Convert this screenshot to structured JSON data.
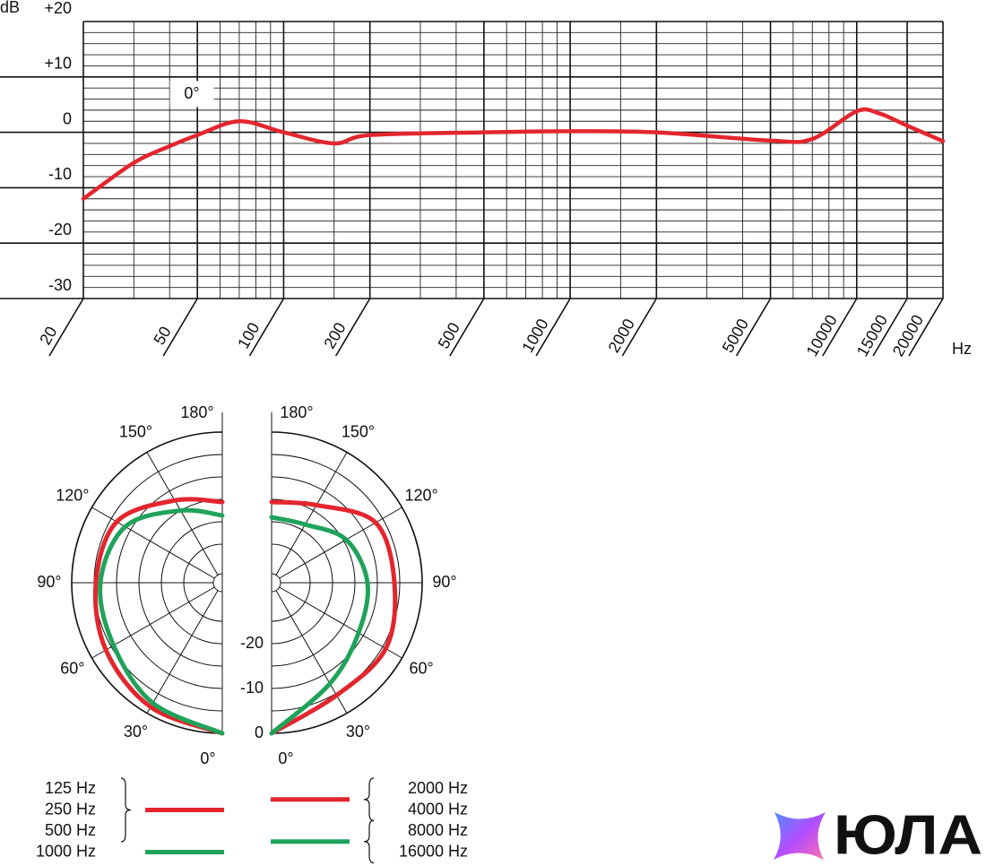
{
  "chart_data": [
    {
      "type": "line",
      "ylabel": "dB",
      "xlabel": "Hz",
      "annotation": "0°",
      "xscale": "log",
      "xlim": [
        20,
        20000
      ],
      "xticks": [
        20,
        50,
        100,
        200,
        500,
        1000,
        2000,
        5000,
        10000,
        15000,
        20000
      ],
      "xminor": [
        30,
        40,
        60,
        70,
        80,
        90,
        150,
        300,
        400,
        600,
        700,
        800,
        900,
        1500,
        3000,
        4000,
        6000,
        7000,
        8000,
        9000
      ],
      "ylim": [
        -30,
        20
      ],
      "yticks": [
        {
          "value": 20,
          "label": "+20"
        },
        {
          "value": 10,
          "label": "+10"
        },
        0,
        -10,
        -20,
        -30
      ],
      "yminor": [
        18,
        16,
        14,
        12,
        8,
        6,
        4,
        2,
        -2,
        -4,
        -6,
        -8,
        -12,
        -14,
        -16,
        -18,
        -22,
        -24,
        -26,
        -28
      ],
      "x": [
        20,
        30,
        40,
        50,
        70,
        100,
        150,
        200,
        500,
        1000,
        2000,
        5000,
        7000,
        10000,
        12000,
        15000,
        20000
      ],
      "values": [
        -12,
        -5.5,
        -2.5,
        -0.5,
        2,
        0,
        -2,
        -0.5,
        0,
        0.2,
        0,
        -1.5,
        -1.2,
        3.8,
        3.4,
        1.2,
        -1.6
      ],
      "color": "#e3262e",
      "grid": true
    },
    {
      "type": "polar",
      "theta": [
        0,
        30,
        60,
        90,
        120,
        150,
        180
      ],
      "thetaticks": [
        {
          "value": 0,
          "label": "0°"
        },
        {
          "value": 30,
          "label": "30°"
        },
        {
          "value": 60,
          "label": "60°"
        },
        {
          "value": 90,
          "label": "90°"
        },
        {
          "value": 120,
          "label": "120°"
        },
        {
          "value": 150,
          "label": "150°"
        },
        {
          "value": 180,
          "label": "180°"
        }
      ],
      "rlim": [
        -30,
        0
      ],
      "rticks": [
        0,
        -10,
        -20
      ],
      "rgrid": [
        -25,
        -20,
        -15,
        -10,
        -5,
        0
      ],
      "series": [
        {
          "name": [
            "125 Hz",
            "250 Hz",
            "500 Hz"
          ],
          "color": "#e3262e",
          "side": "left",
          "values": [
            0,
            -1.6,
            -3.6,
            -5.4,
            -6.4,
            -12.4,
            -15.6
          ]
        },
        {
          "name": [
            "1000 Hz"
          ],
          "color": "#1fa35a",
          "side": "left",
          "values": [
            0,
            -2.6,
            -5.6,
            -6.4,
            -8.6,
            -15,
            -18.6
          ]
        },
        {
          "name": [
            "2000 Hz",
            "4000 Hz"
          ],
          "color": "#e3262e",
          "side": "right",
          "values": [
            0,
            -4.6,
            -4.2,
            -6.2,
            -6.8,
            -13.6,
            -15.6
          ]
        },
        {
          "name": [
            "8000 Hz",
            "16000 Hz"
          ],
          "color": "#1fa35a",
          "side": "right",
          "values": [
            0,
            -7.6,
            -11.2,
            -12.2,
            -14.4,
            -18.6,
            -19
          ]
        }
      ]
    }
  ],
  "logo": "ЮЛА"
}
